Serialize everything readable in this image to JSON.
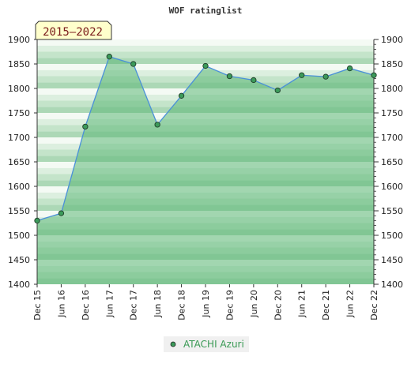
{
  "chart_data": {
    "type": "area",
    "title": "WOF ratinglist",
    "period_label": "2015–2022",
    "categories": [
      "Dec 15",
      "Jun 16",
      "Dec 16",
      "Jun 17",
      "Dec 17",
      "Jun 18",
      "Dec 18",
      "Jun 19",
      "Dec 19",
      "Jun 20",
      "Dec 20",
      "Jun 21",
      "Dec 21",
      "Jun 22",
      "Dec 22"
    ],
    "series": [
      {
        "name": "ATACHI Azuri",
        "values": [
          1530,
          1545,
          1722,
          1865,
          1850,
          1726,
          1785,
          1846,
          1825,
          1817,
          1796,
          1827,
          1824,
          1841,
          1827
        ]
      }
    ],
    "ylim": [
      1400,
      1900
    ],
    "yticks": [
      1400,
      1450,
      1500,
      1550,
      1600,
      1650,
      1700,
      1750,
      1800,
      1850,
      1900
    ],
    "xlabel": "",
    "ylabel": "",
    "grid": "horizontal bands",
    "legend_position": "bottom-center",
    "colors": {
      "area_fill": "#5fb878",
      "line": "#4a90d9",
      "marker": "#3c9a5a",
      "legend_bg": "#f0f0f0",
      "legend_text": "#3a9a55",
      "period_bg": "#ffffcc",
      "period_text": "#7a1a1a"
    }
  }
}
